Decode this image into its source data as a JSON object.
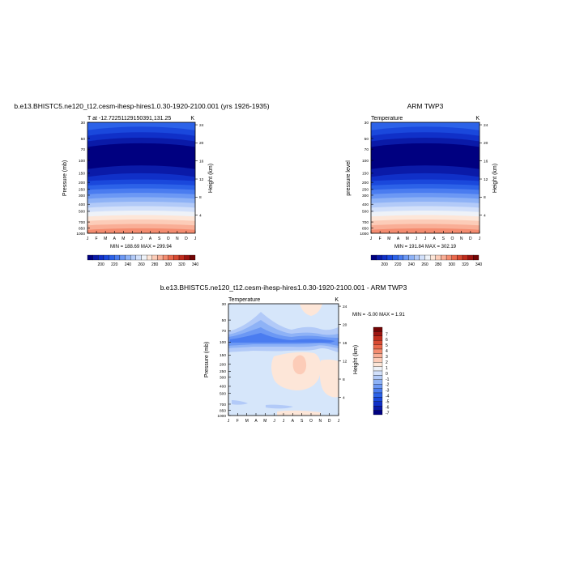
{
  "panel_1": {
    "title": "b.e13.BHISTC5.ne120_t12.cesm-ihesp-hires1.0.30-1920-2100.001 (yrs 1926-1935)",
    "left_label": "T at -12.72251129150391,131.25",
    "unit": "K",
    "ylabel": "Pressure (mb)",
    "ylabel_right": "Height (km)",
    "stats": "MIN = 188.69 MAX = 299.94"
  },
  "panel_2": {
    "title": "ARM TWP3",
    "left_label": "Temperature",
    "unit": "K",
    "ylabel": "pressure level",
    "ylabel_right": "Height (km)",
    "stats": "MIN = 191.84 MAX = 302.19"
  },
  "panel_3": {
    "title": "b.e13.BHISTC5.ne120_t12.cesm-ihesp-hires1.0.30-1920-2100.001 - ARM TWP3",
    "left_label": "Temperature",
    "unit": "K",
    "ylabel": "Pressure (mb)",
    "ylabel_right": "Height (km)",
    "stats": "MIN =  -5.00 MAX =   1.91"
  },
  "colors": {
    "temp_levels": [
      "#000080",
      "#0a1aa8",
      "#1030c8",
      "#1a48dc",
      "#2c62e8",
      "#4a7cf0",
      "#6c98f4",
      "#8eb2f6",
      "#b2caf8",
      "#d2e0fa",
      "#eef2f8",
      "#fde6d8",
      "#fcccb8",
      "#f9ae96",
      "#f48c70",
      "#e9684c",
      "#d84a32",
      "#c02c1c",
      "#9c1410",
      "#720404"
    ],
    "diff_levels": [
      "#000080",
      "#0a1aa8",
      "#1030c8",
      "#1a48dc",
      "#2c62e8",
      "#4a7cf0",
      "#6c98f4",
      "#8eb2f6",
      "#b2caf8",
      "#d2e0fa",
      "#eef2f8",
      "#fde6d8",
      "#fcccb8",
      "#f9ae96",
      "#f48c70",
      "#e9684c",
      "#d84a32",
      "#c02c1c",
      "#9c1410",
      "#720404"
    ],
    "diff_background": "#d6e6fa"
  },
  "chart_data": [
    {
      "type": "heatmap",
      "x_ticks": [
        "J",
        "F",
        "M",
        "A",
        "M",
        "J",
        "J",
        "A",
        "S",
        "O",
        "N",
        "D",
        "J"
      ],
      "y_ticks": [
        "30",
        "50",
        "70",
        "100",
        "150",
        "200",
        "250",
        "300",
        "400",
        "500",
        "700",
        "850",
        "1000"
      ],
      "y_ticks_right": [
        "24",
        "20",
        "16",
        "12",
        "8",
        "4"
      ],
      "colorbar_ticks": [
        "200",
        "220",
        "240",
        "260",
        "280",
        "300",
        "320",
        "340"
      ],
      "ylim": [
        1000,
        30
      ],
      "scale": "log-pressure"
    },
    {
      "type": "heatmap",
      "x_ticks": [
        "J",
        "F",
        "M",
        "A",
        "M",
        "J",
        "J",
        "A",
        "S",
        "O",
        "N",
        "D",
        "J"
      ],
      "y_ticks": [
        "30",
        "50",
        "70",
        "100",
        "150",
        "200",
        "250",
        "300",
        "400",
        "500",
        "700",
        "850",
        "1000"
      ],
      "y_ticks_right": [
        "24",
        "20",
        "16",
        "12",
        "8",
        "4"
      ],
      "colorbar_ticks": [
        "200",
        "220",
        "240",
        "260",
        "280",
        "300",
        "320",
        "340"
      ],
      "ylim": [
        1000,
        30
      ],
      "scale": "log-pressure"
    },
    {
      "type": "heatmap",
      "x_ticks": [
        "J",
        "F",
        "M",
        "A",
        "M",
        "J",
        "J",
        "A",
        "S",
        "O",
        "N",
        "D",
        "J"
      ],
      "y_ticks": [
        "30",
        "50",
        "70",
        "100",
        "150",
        "200",
        "250",
        "300",
        "400",
        "500",
        "700",
        "850",
        "1000"
      ],
      "y_ticks_right": [
        "24",
        "20",
        "16",
        "12",
        "8",
        "4"
      ],
      "colorbar_ticks": [
        "7",
        "6",
        "5",
        "4",
        "3",
        "2",
        "1",
        "0",
        "-1",
        "-2",
        "-3",
        "-4",
        "-5",
        "-6",
        "-7"
      ],
      "ylim": [
        1000,
        30
      ],
      "scale": "log-pressure"
    }
  ]
}
